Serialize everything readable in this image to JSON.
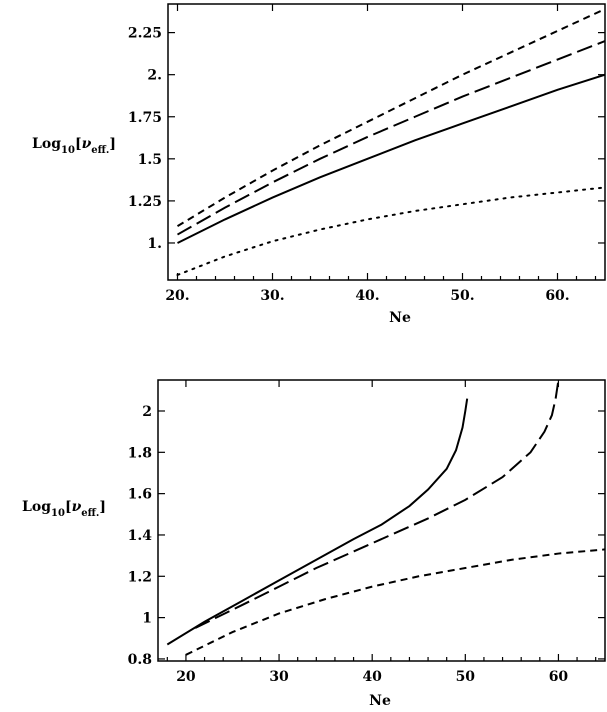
{
  "chart_data": [
    {
      "type": "line",
      "xlabel": "Ne",
      "ylabel": {
        "main": "Log",
        "sub": "10",
        "open": "[",
        "nu": "ν",
        "nusub": "eff.",
        "close": "]"
      },
      "xlim": [
        19,
        65
      ],
      "ylim": [
        0.78,
        2.42
      ],
      "xticks": [
        20,
        30,
        40,
        50,
        60
      ],
      "xtick_labels": [
        "20.",
        "30.",
        "40.",
        "50.",
        "60."
      ],
      "yticks": [
        1,
        1.25,
        1.5,
        1.75,
        2,
        2.25
      ],
      "ytick_labels": [
        "1.",
        "1.25",
        "1.5",
        "1.75",
        "2.",
        "2.25"
      ],
      "grid": false,
      "series": [
        {
          "style": "solid",
          "x": [
            20,
            25,
            30,
            35,
            40,
            45,
            50,
            55,
            60,
            65
          ],
          "y": [
            1.0,
            1.14,
            1.27,
            1.39,
            1.5,
            1.61,
            1.71,
            1.81,
            1.91,
            2.0
          ]
        },
        {
          "style": "long-dash",
          "x": [
            20,
            25,
            30,
            35,
            40,
            45,
            50,
            55,
            60,
            65
          ],
          "y": [
            1.05,
            1.21,
            1.36,
            1.5,
            1.63,
            1.75,
            1.87,
            1.98,
            2.09,
            2.2
          ]
        },
        {
          "style": "short-dash",
          "x": [
            20,
            25,
            30,
            35,
            40,
            45,
            50,
            55,
            60,
            65
          ],
          "y": [
            1.1,
            1.27,
            1.43,
            1.58,
            1.72,
            1.86,
            2.0,
            2.13,
            2.26,
            2.39
          ]
        },
        {
          "style": "dotted",
          "x": [
            20,
            25,
            30,
            35,
            40,
            45,
            50,
            55,
            60,
            65
          ],
          "y": [
            0.81,
            0.92,
            1.01,
            1.08,
            1.14,
            1.19,
            1.23,
            1.27,
            1.3,
            1.33
          ]
        }
      ]
    },
    {
      "type": "line",
      "xlabel": "Ne",
      "ylabel": {
        "main": "Log",
        "sub": "10",
        "open": "[",
        "nu": "ν",
        "nusub": "eff.",
        "close": "]"
      },
      "xlim": [
        17,
        65
      ],
      "ylim": [
        0.79,
        2.15
      ],
      "xticks": [
        20,
        30,
        40,
        50,
        60
      ],
      "xtick_labels": [
        "20",
        "30",
        "40",
        "50",
        "60"
      ],
      "yticks": [
        0.8,
        1,
        1.2,
        1.4,
        1.6,
        1.8,
        2
      ],
      "ytick_labels": [
        "0.8",
        "1",
        "1.2",
        "1.4",
        "1.6",
        "1.8",
        "2"
      ],
      "grid": false,
      "series": [
        {
          "style": "solid",
          "x": [
            18,
            22,
            26,
            30,
            34,
            38,
            41,
            44,
            46,
            48,
            49,
            49.7,
            50,
            50.2
          ],
          "y": [
            0.87,
            0.98,
            1.08,
            1.18,
            1.28,
            1.38,
            1.45,
            1.54,
            1.62,
            1.72,
            1.81,
            1.92,
            2.0,
            2.06
          ]
        },
        {
          "style": "long-dash",
          "x": [
            21,
            26,
            30,
            34,
            38,
            42,
            46,
            50,
            54,
            57,
            58.5,
            59.3,
            59.7,
            60
          ],
          "y": [
            0.95,
            1.06,
            1.15,
            1.24,
            1.32,
            1.4,
            1.48,
            1.57,
            1.68,
            1.8,
            1.9,
            1.98,
            2.06,
            2.15
          ]
        },
        {
          "style": "short-dash",
          "x": [
            20,
            25,
            30,
            35,
            40,
            45,
            50,
            55,
            60,
            65
          ],
          "y": [
            0.82,
            0.93,
            1.02,
            1.09,
            1.15,
            1.2,
            1.24,
            1.28,
            1.31,
            1.33
          ]
        }
      ]
    }
  ]
}
